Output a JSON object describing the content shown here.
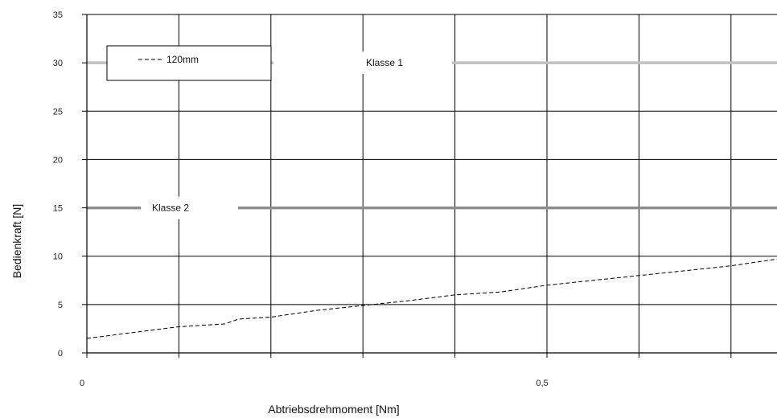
{
  "chart_data": {
    "type": "line",
    "xlabel": "Abtriebsdrehmoment [Nm]",
    "ylabel": "Bedienkraft [N]",
    "xlim": [
      0,
      0.75
    ],
    "ylim": [
      0,
      35
    ],
    "xticks": [
      0,
      0.1,
      0.2,
      0.3,
      0.4,
      0.5,
      0.6,
      0.7
    ],
    "xtick_labels": [
      "0",
      "",
      "",
      "",
      "",
      "0,5",
      "",
      ""
    ],
    "yticks": [
      0,
      5,
      10,
      15,
      20,
      25,
      30,
      35
    ],
    "ytick_labels": [
      "0",
      "5",
      "10",
      "15",
      "20",
      "25",
      "30",
      "35"
    ],
    "grid": true,
    "legend_position": "top-left",
    "series": [
      {
        "name": "120mm",
        "style": "dashed",
        "color": "#000000",
        "x": [
          0,
          0.05,
          0.1,
          0.15,
          0.165,
          0.2,
          0.25,
          0.3,
          0.35,
          0.4,
          0.45,
          0.5,
          0.55,
          0.6,
          0.65,
          0.7,
          0.75
        ],
        "y": [
          1.5,
          2.1,
          2.7,
          3.0,
          3.5,
          3.7,
          4.4,
          4.9,
          5.4,
          6.0,
          6.3,
          7.0,
          7.5,
          8.0,
          8.5,
          9.0,
          9.7
        ]
      }
    ],
    "reference_lines": [
      {
        "label": "Klasse 1",
        "y": 30,
        "color": "#c0c0c0"
      },
      {
        "label": "Klasse 2",
        "y": 15,
        "color": "#8c8c8c"
      }
    ]
  }
}
